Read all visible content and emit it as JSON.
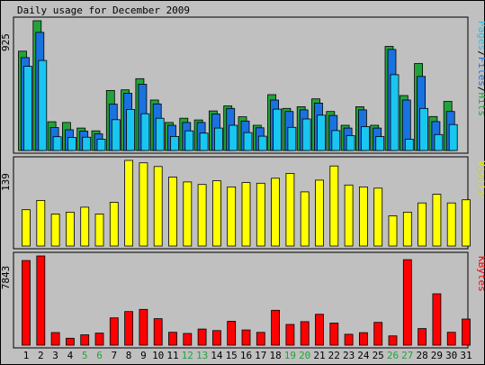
{
  "chart_data": {
    "type": "bar",
    "title": "Daily usage for December 2009",
    "categories": [
      "1",
      "2",
      "3",
      "4",
      "5",
      "6",
      "7",
      "8",
      "9",
      "10",
      "11",
      "12",
      "13",
      "14",
      "15",
      "16",
      "17",
      "18",
      "19",
      "20",
      "21",
      "22",
      "23",
      "24",
      "25",
      "26",
      "27",
      "28",
      "29",
      "30",
      "31"
    ],
    "weekend_days": [
      "5",
      "6",
      "12",
      "13",
      "19",
      "20",
      "26",
      "27"
    ],
    "panels": [
      {
        "name": "hits-files-pages",
        "scale_label": "925",
        "ylim": [
          0,
          925
        ],
        "series": [
          {
            "name": "Hits",
            "color": "#22a33a",
            "values": [
              708,
              925,
              205,
              200,
              160,
              140,
              428,
              432,
              512,
              360,
              200,
              230,
              218,
              282,
              318,
              240,
              180,
              398,
              300,
              312,
              368,
              278,
              180,
              312,
              180,
              742,
              392,
              620,
              242,
              350,
              0
            ]
          },
          {
            "name": "Files",
            "color": "#1a72e0",
            "values": [
              662,
              842,
              164,
              148,
              138,
              118,
              330,
              408,
              472,
              332,
              180,
              200,
              200,
              260,
              300,
              210,
              162,
              360,
              278,
              290,
              338,
              250,
              160,
              290,
              160,
              720,
              360,
              528,
              206,
              278,
              0
            ]
          },
          {
            "name": "Pages",
            "color": "#19c6f0",
            "values": [
              600,
              642,
              98,
              93,
              95,
              80,
              220,
              292,
              262,
              230,
              100,
              140,
              124,
              160,
              180,
              128,
              102,
              295,
              165,
              225,
              252,
              142,
              106,
              170,
              99,
              540,
              80,
              300,
              114,
              185,
              0
            ]
          }
        ],
        "legend": [
          "Pages",
          "/",
          "Files",
          "/",
          "Hits"
        ]
      },
      {
        "name": "visits",
        "scale_label": "139",
        "ylim": [
          0,
          139
        ],
        "series": [
          {
            "name": "Visits",
            "color": "#ffff00",
            "values": [
              59,
              74,
              52,
              55,
              63,
              52,
              71,
              139,
              135,
              129,
              112,
              104,
              100,
              106,
              96,
              103,
              102,
              110,
              118,
              88,
              107,
              130,
              99,
              96,
              94,
              49,
              55,
              70,
              84,
              70,
              75
            ]
          }
        ],
        "legend": [
          "Visits"
        ]
      },
      {
        "name": "kbytes",
        "scale_label": "7843",
        "ylim": [
          0,
          7843
        ],
        "series": [
          {
            "name": "KBytes",
            "color": "#ff0000",
            "values": [
              7438,
              7843,
              1112,
              612,
              913,
              1059,
              2399,
              2952,
              3149,
              2328,
              1130,
              1033,
              1416,
              1286,
              2098,
              1340,
              1128,
              3062,
              1823,
              2069,
              2716,
              1937,
              961,
              1099,
              2004,
              816,
              7522,
              1460,
              4514,
              1130,
              2299
            ]
          }
        ],
        "legend": [
          "KBytes"
        ]
      }
    ]
  }
}
